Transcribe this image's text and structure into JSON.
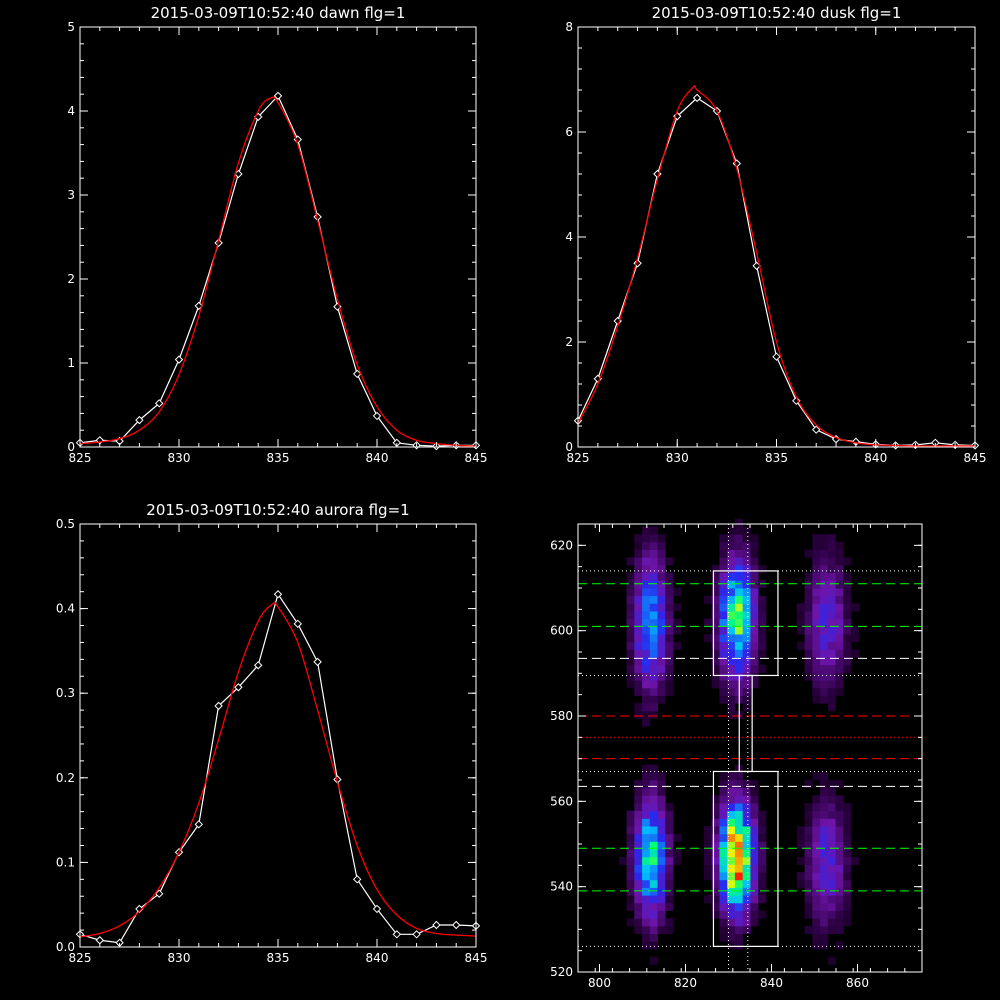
{
  "chart_data": [
    {
      "type": "line",
      "title": "2015-03-09T10:52:40 dawn flg=1",
      "xlim": [
        825,
        845
      ],
      "ylim": [
        0,
        5
      ],
      "xticks": [
        825,
        830,
        835,
        840,
        845
      ],
      "yticks": [
        0,
        1,
        2,
        3,
        4,
        5
      ],
      "series": [
        {
          "color": "#ffffff",
          "marker": "diamond",
          "x": [
            825,
            826,
            827,
            828,
            829,
            830,
            831,
            832,
            833,
            834,
            835,
            836,
            837,
            838,
            839,
            840,
            841,
            842,
            843,
            844,
            845
          ],
          "y": [
            0.05,
            0.08,
            0.07,
            0.32,
            0.52,
            1.04,
            1.68,
            2.43,
            3.25,
            3.93,
            4.18,
            3.66,
            2.74,
            1.67,
            0.87,
            0.37,
            0.05,
            0.02,
            0.01,
            0.02,
            0.02
          ]
        },
        {
          "color": "#ff0000",
          "marker": "none",
          "x": [
            825,
            826,
            827,
            828,
            829,
            830,
            831,
            832,
            833,
            834,
            834.6,
            835,
            836,
            837,
            838,
            839,
            840,
            841,
            842,
            843,
            844,
            845
          ],
          "y": [
            0.04,
            0.06,
            0.1,
            0.2,
            0.42,
            0.86,
            1.56,
            2.46,
            3.38,
            4.0,
            4.15,
            4.1,
            3.6,
            2.7,
            1.76,
            0.98,
            0.48,
            0.2,
            0.08,
            0.04,
            0.02,
            0.01
          ]
        }
      ]
    },
    {
      "type": "line",
      "title": "2015-03-09T10:52:40 dusk flg=1",
      "xlim": [
        825,
        845
      ],
      "ylim": [
        0,
        8
      ],
      "xticks": [
        825,
        830,
        835,
        840,
        845
      ],
      "yticks": [
        0,
        2,
        4,
        6,
        8
      ],
      "series": [
        {
          "color": "#ffffff",
          "marker": "diamond",
          "x": [
            825,
            826,
            827,
            828,
            829,
            830,
            831,
            832,
            833,
            834,
            835,
            836,
            837,
            838,
            839,
            840,
            841,
            842,
            843,
            844,
            845
          ],
          "y": [
            0.5,
            1.3,
            2.4,
            3.5,
            5.2,
            6.3,
            6.65,
            6.4,
            5.4,
            3.45,
            1.72,
            0.88,
            0.33,
            0.15,
            0.1,
            0.05,
            0.03,
            0.04,
            0.08,
            0.04,
            0.03
          ]
        },
        {
          "color": "#ff0000",
          "marker": "none",
          "x": [
            825,
            826,
            827,
            828,
            829,
            830,
            830.8,
            831,
            832,
            833,
            834,
            835,
            836,
            837,
            838,
            839,
            840,
            841,
            842,
            843,
            844,
            845
          ],
          "y": [
            0.45,
            1.2,
            2.3,
            3.6,
            5.1,
            6.4,
            6.85,
            6.8,
            6.4,
            5.3,
            3.7,
            2.0,
            0.95,
            0.42,
            0.18,
            0.08,
            0.04,
            0.03,
            0.02,
            0.02,
            0.02,
            0.02
          ]
        }
      ]
    },
    {
      "type": "line",
      "title": "2015-03-09T10:52:40 aurora flg=1",
      "xlim": [
        825,
        845
      ],
      "ylim": [
        0,
        0.5
      ],
      "xticks": [
        825,
        830,
        835,
        840,
        845
      ],
      "yticks": [
        0.0,
        0.1,
        0.2,
        0.3,
        0.4,
        0.5
      ],
      "ytick_labels": [
        "0.0",
        "0.1",
        "0.2",
        "0.3",
        "0.4",
        "0.5"
      ],
      "series": [
        {
          "color": "#ffffff",
          "marker": "diamond",
          "x": [
            825,
            826,
            827,
            828,
            829,
            830,
            831,
            832,
            833,
            834,
            835,
            836,
            837,
            838,
            839,
            840,
            841,
            842,
            843,
            844,
            845
          ],
          "y": [
            0.015,
            0.008,
            0.005,
            0.045,
            0.063,
            0.112,
            0.145,
            0.285,
            0.307,
            0.333,
            0.417,
            0.382,
            0.337,
            0.198,
            0.08,
            0.045,
            0.015,
            0.015,
            0.026,
            0.026,
            0.025
          ]
        },
        {
          "color": "#ff0000",
          "marker": "none",
          "x": [
            825,
            826,
            827,
            828,
            829,
            830,
            831,
            832,
            833,
            834,
            834.7,
            835,
            836,
            837,
            838,
            839,
            840,
            841,
            842,
            843,
            844,
            845
          ],
          "y": [
            0.012,
            0.016,
            0.025,
            0.042,
            0.07,
            0.112,
            0.17,
            0.245,
            0.325,
            0.385,
            0.405,
            0.402,
            0.36,
            0.28,
            0.195,
            0.12,
            0.068,
            0.038,
            0.022,
            0.016,
            0.014,
            0.013
          ]
        }
      ]
    },
    {
      "type": "heatmap",
      "title": "",
      "xlim": [
        795,
        875
      ],
      "ylim": [
        520,
        625
      ],
      "xticks": [
        800,
        820,
        840,
        860
      ],
      "yticks": [
        520,
        540,
        560,
        580,
        600,
        620
      ],
      "blobs": [
        {
          "x": 811,
          "y": 601,
          "sx": 2.6,
          "sy": 10,
          "amp": 0.42
        },
        {
          "x": 811,
          "y": 546,
          "sx": 2.5,
          "sy": 9,
          "amp": 0.55
        },
        {
          "x": 831,
          "y": 602,
          "sx": 2.7,
          "sy": 9,
          "amp": 0.62
        },
        {
          "x": 831,
          "y": 546,
          "sx": 2.6,
          "sy": 8,
          "amp": 0.98
        },
        {
          "x": 852,
          "y": 601,
          "sx": 3,
          "sy": 10,
          "amp": 0.24
        },
        {
          "x": 852,
          "y": 545,
          "sx": 3,
          "sy": 10,
          "amp": 0.24
        }
      ],
      "boxes": [
        {
          "x0": 826.5,
          "x1": 841.5,
          "y0": 589.5,
          "y1": 614,
          "color": "#ffffff"
        },
        {
          "x0": 826.5,
          "x1": 841.5,
          "y0": 526,
          "y1": 567,
          "color": "#ffffff"
        },
        {
          "x0": 832.5,
          "x1": 835.5,
          "y0": 567,
          "y1": 589.5,
          "color": "#ffffff"
        }
      ],
      "hlines": [
        {
          "y": 611,
          "color": "#00ff00",
          "style": "dashed"
        },
        {
          "y": 601,
          "color": "#00ff00",
          "style": "dashed"
        },
        {
          "y": 549,
          "color": "#00ff00",
          "style": "dashed"
        },
        {
          "y": 539,
          "color": "#00ff00",
          "style": "dashed"
        },
        {
          "y": 593.5,
          "color": "#ffffff",
          "style": "dashed"
        },
        {
          "y": 563.5,
          "color": "#ffffff",
          "style": "dashed"
        },
        {
          "y": 580,
          "color": "#ff0000",
          "style": "dashed"
        },
        {
          "y": 570,
          "color": "#ff0000",
          "style": "dashed"
        },
        {
          "y": 575,
          "color": "#ff0000",
          "style": "dotted"
        },
        {
          "y": 614,
          "color": "#ffffff",
          "style": "dotted"
        },
        {
          "y": 589.5,
          "color": "#ffffff",
          "style": "dotted"
        },
        {
          "y": 567,
          "color": "#ffffff",
          "style": "dotted"
        },
        {
          "y": 526,
          "color": "#ffffff",
          "style": "dotted"
        }
      ],
      "vlines": [
        {
          "x": 830,
          "color": "#ffffff",
          "style": "dotted"
        },
        {
          "x": 834.5,
          "color": "#ffffff",
          "style": "dotted"
        }
      ]
    }
  ]
}
